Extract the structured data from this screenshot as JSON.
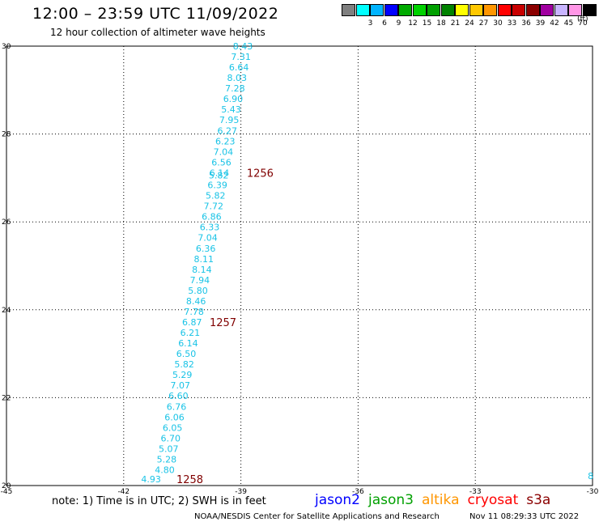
{
  "header": {
    "title": "12:00 – 23:59 UTC 11/09/2022",
    "subtitle": "12 hour collection of altimeter wave heights"
  },
  "colorbar": {
    "unit": "(ft)",
    "items": [
      {
        "label": "",
        "color": "#7f7f7f"
      },
      {
        "label": "3",
        "color": "#00ffff"
      },
      {
        "label": "6",
        "color": "#00b4ff"
      },
      {
        "label": "9",
        "color": "#0000ff"
      },
      {
        "label": "12",
        "color": "#00aa00"
      },
      {
        "label": "15",
        "color": "#00d200"
      },
      {
        "label": "18",
        "color": "#00a000"
      },
      {
        "label": "21",
        "color": "#008200"
      },
      {
        "label": "24",
        "color": "#ffff00"
      },
      {
        "label": "27",
        "color": "#ffc800"
      },
      {
        "label": "30",
        "color": "#ff9600"
      },
      {
        "label": "33",
        "color": "#ff0000"
      },
      {
        "label": "36",
        "color": "#c80000"
      },
      {
        "label": "39",
        "color": "#8b0000"
      },
      {
        "label": "42",
        "color": "#a000a0"
      },
      {
        "label": "45",
        "color": "#c8b4ff"
      },
      {
        "label": "70",
        "color": "#ff96e6"
      },
      {
        "label": "",
        "color": "#000000"
      }
    ]
  },
  "chart_data": {
    "type": "scatter",
    "xlim": [
      -45,
      -30
    ],
    "ylim": [
      20,
      30
    ],
    "x_ticks": [
      "-45",
      "-42",
      "-39",
      "-36",
      "-33",
      "-30"
    ],
    "y_ticks": [
      "20",
      "22",
      "24",
      "26",
      "28",
      "30"
    ],
    "grid": true,
    "value_color": "#19c3e6",
    "label_color": "#800000",
    "points": [
      {
        "lon": -38.95,
        "lat": 30.0,
        "v": "8.43"
      },
      {
        "lon": -39.0,
        "lat": 29.76,
        "v": "7.31"
      },
      {
        "lon": -39.05,
        "lat": 29.52,
        "v": "6.64"
      },
      {
        "lon": -39.1,
        "lat": 29.28,
        "v": "8.03"
      },
      {
        "lon": -39.15,
        "lat": 29.04,
        "v": "7.28"
      },
      {
        "lon": -39.2,
        "lat": 28.8,
        "v": "6.90"
      },
      {
        "lon": -39.25,
        "lat": 28.56,
        "v": "5.43"
      },
      {
        "lon": -39.3,
        "lat": 28.32,
        "v": "7.95"
      },
      {
        "lon": -39.35,
        "lat": 28.08,
        "v": "6.27"
      },
      {
        "lon": -39.4,
        "lat": 27.84,
        "v": "6.23"
      },
      {
        "lon": -39.45,
        "lat": 27.6,
        "v": "7.04"
      },
      {
        "lon": -39.5,
        "lat": 27.36,
        "v": "6.56"
      },
      {
        "lon": -39.55,
        "lat": 27.12,
        "v": "6.14"
      },
      {
        "lon": -39.57,
        "lat": 27.06,
        "v": "5.82"
      },
      {
        "lon": -39.6,
        "lat": 26.84,
        "v": "6.39"
      },
      {
        "lon": -39.65,
        "lat": 26.6,
        "v": "5.82"
      },
      {
        "lon": -39.7,
        "lat": 26.36,
        "v": "7.72"
      },
      {
        "lon": -39.75,
        "lat": 26.12,
        "v": "6.86"
      },
      {
        "lon": -39.8,
        "lat": 25.88,
        "v": "6.33"
      },
      {
        "lon": -39.85,
        "lat": 25.64,
        "v": "7.04"
      },
      {
        "lon": -39.9,
        "lat": 25.4,
        "v": "6.36"
      },
      {
        "lon": -39.95,
        "lat": 25.16,
        "v": "8.11"
      },
      {
        "lon": -40.0,
        "lat": 24.92,
        "v": "8.14"
      },
      {
        "lon": -40.05,
        "lat": 24.68,
        "v": "7.94"
      },
      {
        "lon": -40.1,
        "lat": 24.44,
        "v": "5.80"
      },
      {
        "lon": -40.15,
        "lat": 24.2,
        "v": "8.46"
      },
      {
        "lon": -40.2,
        "lat": 23.96,
        "v": "7.78"
      },
      {
        "lon": -40.25,
        "lat": 23.72,
        "v": "6.87"
      },
      {
        "lon": -40.3,
        "lat": 23.48,
        "v": "6.21"
      },
      {
        "lon": -40.35,
        "lat": 23.24,
        "v": "6.14"
      },
      {
        "lon": -40.4,
        "lat": 23.0,
        "v": "6.50"
      },
      {
        "lon": -40.45,
        "lat": 22.76,
        "v": "5.82"
      },
      {
        "lon": -40.5,
        "lat": 22.52,
        "v": "5.29"
      },
      {
        "lon": -40.55,
        "lat": 22.28,
        "v": "7.07"
      },
      {
        "lon": -40.6,
        "lat": 22.04,
        "v": "6.60"
      },
      {
        "lon": -40.65,
        "lat": 21.8,
        "v": "6.76"
      },
      {
        "lon": -40.7,
        "lat": 21.56,
        "v": "6.06"
      },
      {
        "lon": -40.75,
        "lat": 21.32,
        "v": "6.05"
      },
      {
        "lon": -40.8,
        "lat": 21.08,
        "v": "6.70"
      },
      {
        "lon": -40.85,
        "lat": 20.84,
        "v": "5.07"
      },
      {
        "lon": -40.9,
        "lat": 20.6,
        "v": "5.28"
      },
      {
        "lon": -40.95,
        "lat": 20.36,
        "v": "4.80"
      },
      {
        "lon": -41.3,
        "lat": 20.15,
        "v": "4.93"
      },
      {
        "lon": -30.05,
        "lat": 20.22,
        "v": "8"
      }
    ],
    "time_labels": [
      {
        "lon": -38.85,
        "lat": 27.12,
        "text": "1256"
      },
      {
        "lon": -39.8,
        "lat": 23.72,
        "text": "1257"
      },
      {
        "lon": -40.65,
        "lat": 20.15,
        "text": "1258"
      }
    ]
  },
  "footer": {
    "note": "note: 1) Time is in UTC; 2) SWH is in feet",
    "credit": "NOAA/NESDIS Center for Satellite Applications and Research",
    "stamp": "Nov 11 08:29:33 UTC 2022"
  },
  "legend": [
    {
      "name": "jason2",
      "color": "#0000ff"
    },
    {
      "name": "jason3",
      "color": "#00a000"
    },
    {
      "name": "altika",
      "color": "#ff9600"
    },
    {
      "name": "cryosat",
      "color": "#ff0000"
    },
    {
      "name": "s3a",
      "color": "#8b0000"
    }
  ]
}
